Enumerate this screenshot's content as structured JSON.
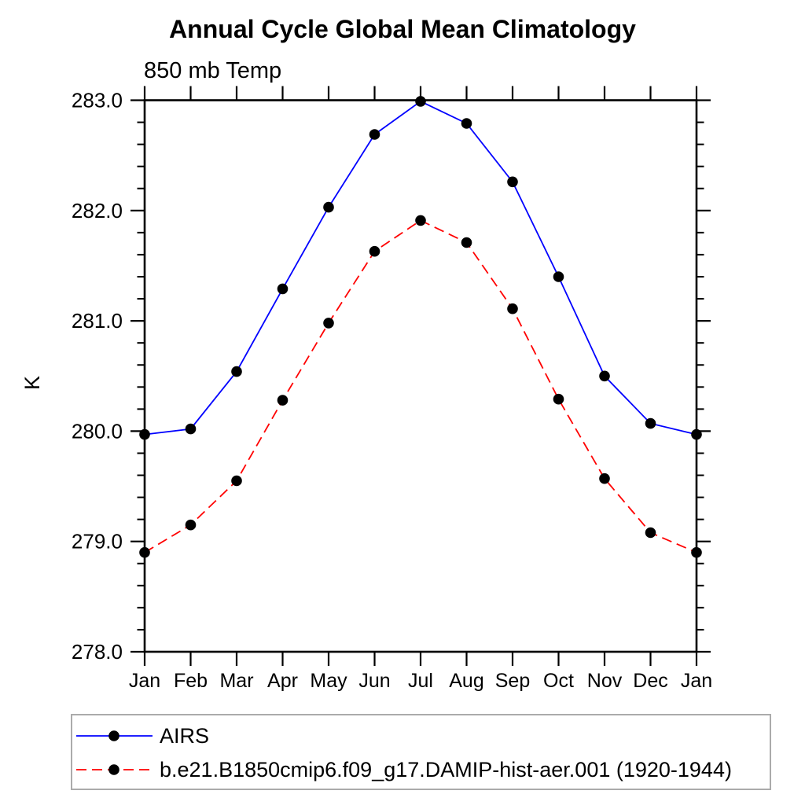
{
  "chart_data": {
    "type": "line",
    "title": "Annual Cycle Global Mean Climatology",
    "subtitle": "850 mb Temp",
    "ylabel": "K",
    "xlabel": "",
    "categories": [
      "Jan",
      "Feb",
      "Mar",
      "Apr",
      "May",
      "Jun",
      "Jul",
      "Aug",
      "Sep",
      "Oct",
      "Nov",
      "Dec",
      "Jan"
    ],
    "ylim": [
      278.0,
      283.0
    ],
    "y_major_step": 1.0,
    "y_minor_step": 0.2,
    "y_tick_labels": [
      "278.0",
      "279.0",
      "280.0",
      "281.0",
      "282.0",
      "283.0"
    ],
    "grid": false,
    "axis_color": "#000000",
    "marker_color": "#000000",
    "legend_position": "bottom-left-box",
    "legend_border_color": "#ababab",
    "series": [
      {
        "name": "AIRS",
        "color": "#0000ff",
        "linestyle": "solid",
        "marker": "circle",
        "values": [
          279.97,
          280.02,
          280.54,
          281.29,
          282.03,
          282.69,
          282.99,
          282.79,
          282.26,
          281.4,
          280.5,
          280.07,
          279.97
        ]
      },
      {
        "name": "b.e21.B1850cmip6.f09_g17.DAMIP-hist-aer.001 (1920-1944)",
        "color": "#ff0000",
        "linestyle": "dashed",
        "marker": "circle",
        "values": [
          278.9,
          279.15,
          279.55,
          280.28,
          280.98,
          281.63,
          281.91,
          281.71,
          281.11,
          280.29,
          279.57,
          279.08,
          278.9
        ]
      }
    ]
  }
}
